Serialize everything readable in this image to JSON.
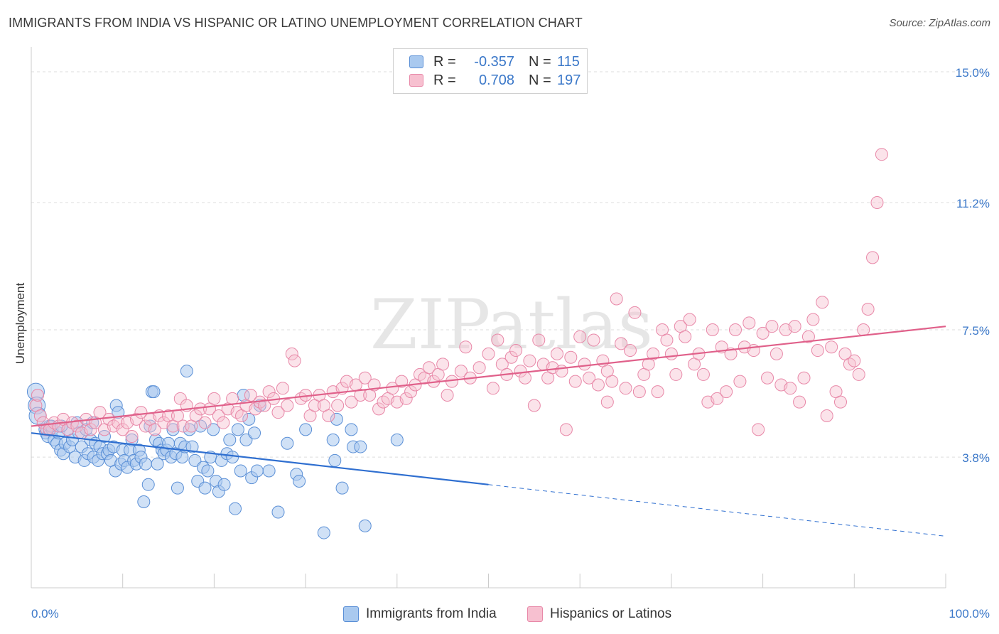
{
  "title": "IMMIGRANTS FROM INDIA VS HISPANIC OR LATINO UNEMPLOYMENT CORRELATION CHART",
  "source": "Source: ZipAtlas.com",
  "watermark": "ZIPatlas",
  "legend": {
    "rows": [
      {
        "r_label": "R =",
        "r_value": "-0.357",
        "n_label": "N =",
        "n_value": "115"
      },
      {
        "r_label": "R =",
        "r_value": "0.708",
        "n_label": "N =",
        "n_value": "197"
      }
    ]
  },
  "bottom_legend": {
    "india": "Immigrants from India",
    "hispanic": "Hispanics or Latinos"
  },
  "colors": {
    "india_fill": "#a9c9ef",
    "india_stroke": "#5a8fd6",
    "india_line": "#2f6fd0",
    "hispanic_fill": "#f7c0d0",
    "hispanic_stroke": "#e888a8",
    "hispanic_line": "#e0608a",
    "axis_label": "#3b78c9",
    "grid": "#dddddd"
  },
  "chart_data": {
    "type": "scatter",
    "title": "IMMIGRANTS FROM INDIA VS HISPANIC OR LATINO UNEMPLOYMENT CORRELATION CHART",
    "xlabel": "",
    "ylabel": "Unemployment",
    "xlim": [
      0,
      100
    ],
    "ylim": [
      0,
      15.6
    ],
    "x_tick_labels": [
      "0.0%",
      "100.0%"
    ],
    "y_ticks": [
      3.8,
      7.5,
      11.2,
      15.0
    ],
    "y_tick_labels": [
      "3.8%",
      "7.5%",
      "11.2%",
      "15.0%"
    ],
    "grid": true,
    "legend_placement": "top-center",
    "series": [
      {
        "name": "Immigrants from India",
        "r": -0.357,
        "n": 115,
        "trend": {
          "x": [
            0,
            50
          ],
          "y": [
            4.5,
            3.0
          ],
          "dashed_extension": {
            "x": [
              50,
              100
            ],
            "y": [
              3.0,
              1.5
            ]
          }
        },
        "points": [
          [
            0.5,
            5.7
          ],
          [
            0.6,
            5.3
          ],
          [
            0.7,
            5.0
          ],
          [
            1.5,
            4.6
          ],
          [
            1.6,
            4.5
          ],
          [
            1.8,
            4.4
          ],
          [
            2.0,
            4.7
          ],
          [
            2.3,
            4.6
          ],
          [
            2.5,
            4.3
          ],
          [
            2.8,
            4.2
          ],
          [
            3.0,
            4.5
          ],
          [
            3.2,
            4.0
          ],
          [
            3.5,
            3.9
          ],
          [
            3.7,
            4.2
          ],
          [
            4.0,
            4.6
          ],
          [
            4.2,
            4.1
          ],
          [
            4.5,
            4.3
          ],
          [
            4.8,
            3.8
          ],
          [
            5.0,
            4.8
          ],
          [
            5.2,
            4.5
          ],
          [
            5.5,
            4.1
          ],
          [
            5.8,
            3.7
          ],
          [
            6.0,
            4.6
          ],
          [
            6.2,
            3.9
          ],
          [
            6.5,
            4.3
          ],
          [
            6.8,
            3.8
          ],
          [
            7.0,
            4.2
          ],
          [
            7.3,
            3.7
          ],
          [
            7.5,
            4.1
          ],
          [
            7.8,
            3.9
          ],
          [
            8.0,
            4.4
          ],
          [
            8.3,
            3.9
          ],
          [
            8.5,
            4.0
          ],
          [
            8.7,
            3.7
          ],
          [
            9.0,
            4.1
          ],
          [
            9.2,
            3.4
          ],
          [
            9.3,
            5.3
          ],
          [
            9.5,
            5.1
          ],
          [
            9.8,
            3.6
          ],
          [
            10.0,
            4.0
          ],
          [
            10.2,
            3.7
          ],
          [
            10.5,
            3.5
          ],
          [
            10.8,
            4.0
          ],
          [
            11.0,
            4.3
          ],
          [
            11.2,
            3.7
          ],
          [
            11.5,
            3.6
          ],
          [
            11.8,
            4.0
          ],
          [
            12.0,
            3.8
          ],
          [
            12.3,
            2.5
          ],
          [
            12.5,
            3.6
          ],
          [
            12.8,
            3.0
          ],
          [
            13.0,
            4.7
          ],
          [
            13.2,
            5.7
          ],
          [
            13.4,
            5.7
          ],
          [
            13.6,
            4.3
          ],
          [
            13.8,
            3.6
          ],
          [
            14.0,
            4.2
          ],
          [
            14.3,
            4.0
          ],
          [
            14.5,
            3.9
          ],
          [
            14.8,
            4.0
          ],
          [
            15.0,
            4.2
          ],
          [
            15.3,
            3.8
          ],
          [
            15.5,
            4.6
          ],
          [
            15.8,
            3.9
          ],
          [
            16.0,
            2.9
          ],
          [
            16.3,
            4.2
          ],
          [
            16.5,
            3.8
          ],
          [
            16.8,
            4.1
          ],
          [
            17.0,
            6.3
          ],
          [
            17.3,
            4.6
          ],
          [
            17.6,
            4.1
          ],
          [
            17.9,
            3.7
          ],
          [
            18.2,
            3.1
          ],
          [
            18.5,
            4.7
          ],
          [
            18.8,
            3.5
          ],
          [
            19.0,
            2.9
          ],
          [
            19.3,
            3.4
          ],
          [
            19.6,
            3.8
          ],
          [
            19.9,
            4.6
          ],
          [
            20.2,
            3.1
          ],
          [
            20.5,
            2.8
          ],
          [
            20.8,
            3.7
          ],
          [
            21.1,
            3.0
          ],
          [
            21.4,
            3.9
          ],
          [
            21.7,
            4.3
          ],
          [
            22.0,
            3.8
          ],
          [
            22.3,
            2.3
          ],
          [
            22.6,
            4.6
          ],
          [
            22.9,
            3.4
          ],
          [
            23.2,
            5.6
          ],
          [
            23.5,
            4.3
          ],
          [
            23.8,
            4.9
          ],
          [
            24.1,
            3.2
          ],
          [
            24.4,
            4.5
          ],
          [
            24.7,
            3.4
          ],
          [
            25.0,
            5.3
          ],
          [
            26.0,
            3.4
          ],
          [
            27.0,
            2.2
          ],
          [
            28.0,
            4.2
          ],
          [
            29.0,
            3.3
          ],
          [
            29.3,
            3.1
          ],
          [
            30.0,
            4.6
          ],
          [
            32.0,
            1.6
          ],
          [
            33.0,
            4.3
          ],
          [
            33.2,
            3.7
          ],
          [
            33.4,
            4.9
          ],
          [
            34.0,
            2.9
          ],
          [
            35.0,
            4.6
          ],
          [
            35.2,
            4.1
          ],
          [
            36.0,
            4.1
          ],
          [
            36.5,
            1.8
          ],
          [
            40.0,
            4.3
          ],
          [
            2.2,
            4.7
          ],
          [
            3.3,
            4.7
          ],
          [
            6.7,
            4.8
          ]
        ]
      },
      {
        "name": "Hispanics or Latinos",
        "r": 0.708,
        "n": 197,
        "trend": {
          "x": [
            0,
            100
          ],
          "y": [
            4.7,
            7.6
          ]
        },
        "points": [
          [
            0.5,
            5.3
          ],
          [
            0.7,
            5.6
          ],
          [
            1.0,
            5.0
          ],
          [
            1.3,
            4.8
          ],
          [
            1.7,
            4.6
          ],
          [
            2.0,
            4.6
          ],
          [
            2.5,
            4.8
          ],
          [
            3.0,
            4.7
          ],
          [
            3.5,
            4.9
          ],
          [
            4.0,
            4.6
          ],
          [
            4.5,
            4.8
          ],
          [
            5.0,
            4.7
          ],
          [
            5.5,
            4.5
          ],
          [
            6.0,
            4.9
          ],
          [
            6.5,
            4.6
          ],
          [
            7.0,
            4.8
          ],
          [
            7.5,
            5.1
          ],
          [
            8.0,
            4.6
          ],
          [
            8.5,
            4.9
          ],
          [
            9.0,
            4.7
          ],
          [
            9.5,
            4.8
          ],
          [
            10.0,
            4.6
          ],
          [
            10.5,
            4.8
          ],
          [
            11.0,
            4.4
          ],
          [
            11.5,
            4.9
          ],
          [
            12.0,
            5.1
          ],
          [
            12.5,
            4.7
          ],
          [
            13.0,
            4.9
          ],
          [
            13.5,
            4.6
          ],
          [
            14.0,
            5.0
          ],
          [
            14.5,
            4.8
          ],
          [
            15.0,
            5.0
          ],
          [
            15.5,
            4.7
          ],
          [
            16.0,
            5.0
          ],
          [
            16.3,
            5.5
          ],
          [
            16.6,
            4.7
          ],
          [
            17.0,
            5.3
          ],
          [
            17.5,
            4.7
          ],
          [
            18.0,
            5.0
          ],
          [
            18.5,
            5.2
          ],
          [
            19.0,
            4.8
          ],
          [
            19.5,
            5.2
          ],
          [
            20.0,
            5.5
          ],
          [
            20.5,
            5.0
          ],
          [
            21.0,
            4.8
          ],
          [
            21.5,
            5.2
          ],
          [
            22.0,
            5.5
          ],
          [
            22.5,
            5.1
          ],
          [
            23.0,
            5.0
          ],
          [
            23.5,
            5.3
          ],
          [
            24.0,
            5.6
          ],
          [
            24.5,
            5.2
          ],
          [
            25.0,
            5.4
          ],
          [
            25.5,
            5.3
          ],
          [
            26.0,
            5.7
          ],
          [
            26.5,
            5.5
          ],
          [
            27.0,
            5.1
          ],
          [
            27.5,
            5.8
          ],
          [
            28.0,
            5.3
          ],
          [
            28.5,
            6.8
          ],
          [
            28.8,
            6.6
          ],
          [
            29.5,
            5.5
          ],
          [
            30.0,
            5.6
          ],
          [
            30.5,
            5.0
          ],
          [
            31.0,
            5.3
          ],
          [
            31.5,
            5.6
          ],
          [
            32.0,
            5.3
          ],
          [
            32.5,
            5.0
          ],
          [
            33.0,
            5.7
          ],
          [
            33.5,
            5.3
          ],
          [
            34.0,
            5.8
          ],
          [
            34.5,
            6.0
          ],
          [
            35.0,
            5.4
          ],
          [
            35.5,
            5.9
          ],
          [
            36.0,
            5.6
          ],
          [
            36.5,
            6.1
          ],
          [
            37.0,
            5.6
          ],
          [
            37.5,
            5.9
          ],
          [
            38.0,
            5.2
          ],
          [
            38.5,
            5.4
          ],
          [
            39.0,
            5.5
          ],
          [
            39.5,
            5.8
          ],
          [
            40.0,
            5.4
          ],
          [
            40.5,
            6.0
          ],
          [
            41.0,
            5.5
          ],
          [
            41.5,
            5.7
          ],
          [
            42.0,
            5.9
          ],
          [
            42.5,
            6.2
          ],
          [
            43.0,
            6.1
          ],
          [
            43.5,
            6.4
          ],
          [
            44.0,
            6.0
          ],
          [
            44.5,
            6.2
          ],
          [
            45.0,
            6.5
          ],
          [
            45.5,
            5.6
          ],
          [
            46.0,
            6.0
          ],
          [
            47.0,
            6.3
          ],
          [
            47.5,
            7.0
          ],
          [
            48.0,
            6.1
          ],
          [
            49.0,
            6.4
          ],
          [
            50.0,
            6.8
          ],
          [
            50.5,
            5.8
          ],
          [
            51.0,
            7.2
          ],
          [
            51.5,
            6.5
          ],
          [
            52.0,
            6.2
          ],
          [
            52.5,
            6.7
          ],
          [
            53.0,
            6.9
          ],
          [
            53.5,
            6.3
          ],
          [
            54.0,
            6.1
          ],
          [
            54.5,
            6.6
          ],
          [
            55.0,
            5.3
          ],
          [
            55.5,
            7.2
          ],
          [
            56.0,
            6.5
          ],
          [
            56.5,
            6.1
          ],
          [
            57.0,
            6.4
          ],
          [
            57.5,
            6.8
          ],
          [
            58.0,
            6.3
          ],
          [
            58.5,
            4.6
          ],
          [
            59.0,
            6.7
          ],
          [
            59.5,
            6.0
          ],
          [
            60.0,
            7.3
          ],
          [
            60.5,
            6.5
          ],
          [
            61.0,
            6.1
          ],
          [
            61.5,
            7.2
          ],
          [
            62.0,
            5.9
          ],
          [
            62.5,
            6.6
          ],
          [
            63.0,
            5.4
          ],
          [
            63.5,
            6.0
          ],
          [
            64.0,
            8.4
          ],
          [
            64.5,
            7.1
          ],
          [
            65.0,
            5.8
          ],
          [
            65.5,
            6.9
          ],
          [
            66.0,
            8.0
          ],
          [
            66.5,
            5.7
          ],
          [
            67.0,
            6.2
          ],
          [
            67.5,
            6.5
          ],
          [
            68.0,
            6.8
          ],
          [
            68.5,
            5.7
          ],
          [
            69.0,
            7.5
          ],
          [
            69.5,
            7.2
          ],
          [
            70.0,
            6.8
          ],
          [
            70.5,
            6.2
          ],
          [
            71.0,
            7.6
          ],
          [
            71.5,
            7.3
          ],
          [
            72.0,
            7.8
          ],
          [
            72.5,
            6.5
          ],
          [
            73.0,
            6.8
          ],
          [
            73.5,
            6.2
          ],
          [
            74.0,
            5.4
          ],
          [
            74.5,
            7.5
          ],
          [
            75.0,
            5.5
          ],
          [
            75.5,
            7.0
          ],
          [
            76.0,
            5.7
          ],
          [
            76.5,
            6.8
          ],
          [
            77.0,
            7.5
          ],
          [
            77.5,
            6.0
          ],
          [
            78.0,
            7.0
          ],
          [
            78.5,
            7.7
          ],
          [
            79.0,
            6.9
          ],
          [
            79.5,
            4.6
          ],
          [
            80.0,
            7.4
          ],
          [
            80.5,
            6.1
          ],
          [
            81.0,
            7.6
          ],
          [
            81.5,
            6.8
          ],
          [
            82.0,
            5.9
          ],
          [
            82.5,
            7.5
          ],
          [
            83.0,
            5.8
          ],
          [
            83.5,
            7.6
          ],
          [
            84.0,
            5.4
          ],
          [
            84.5,
            6.1
          ],
          [
            85.0,
            7.3
          ],
          [
            85.5,
            7.8
          ],
          [
            86.0,
            6.9
          ],
          [
            86.5,
            8.3
          ],
          [
            87.0,
            5.0
          ],
          [
            87.5,
            7.0
          ],
          [
            88.0,
            5.7
          ],
          [
            88.5,
            5.4
          ],
          [
            89.0,
            6.8
          ],
          [
            89.5,
            6.5
          ],
          [
            90.0,
            6.6
          ],
          [
            90.5,
            6.2
          ],
          [
            91.0,
            7.5
          ],
          [
            91.5,
            8.1
          ],
          [
            92.0,
            9.6
          ],
          [
            92.5,
            11.2
          ],
          [
            93.0,
            12.6
          ],
          [
            63.0,
            6.3
          ]
        ]
      }
    ]
  }
}
